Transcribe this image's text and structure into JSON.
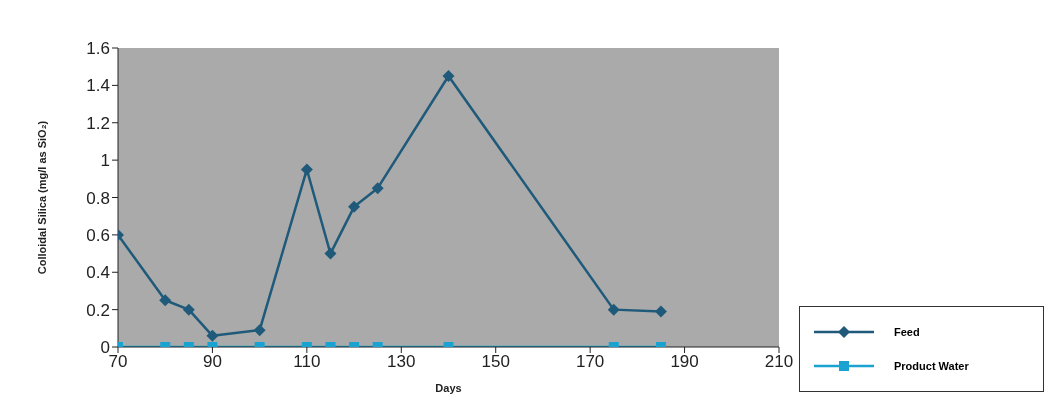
{
  "chart_data": {
    "type": "line",
    "xlabel": "Days",
    "ylabel": "Colloidal Silica (mg/l as SiO₂)",
    "xlim": [
      70,
      210
    ],
    "xticks": [
      70,
      90,
      110,
      130,
      150,
      170,
      190,
      210
    ],
    "ylim": [
      0,
      1.6
    ],
    "yticks": [
      0,
      0.2,
      0.4,
      0.6,
      0.8,
      1,
      1.2,
      1.4,
      1.6
    ],
    "x": [
      70,
      80,
      85,
      90,
      100,
      110,
      115,
      120,
      125,
      140,
      175,
      185
    ],
    "series": [
      {
        "name": "Feed",
        "color": "#1f5a7a",
        "marker": "diamond",
        "values": [
          0.6,
          0.25,
          0.2,
          0.06,
          0.09,
          0.95,
          0.5,
          0.75,
          0.85,
          1.45,
          0.2,
          0.19
        ]
      },
      {
        "name": "Product Water",
        "color": "#1aa3d0",
        "marker": "square",
        "values": [
          0,
          0,
          0,
          0,
          0,
          0,
          0,
          0,
          0,
          0,
          0,
          0
        ]
      }
    ],
    "grid": false,
    "legend": "bottom right",
    "line_style": "solid"
  }
}
